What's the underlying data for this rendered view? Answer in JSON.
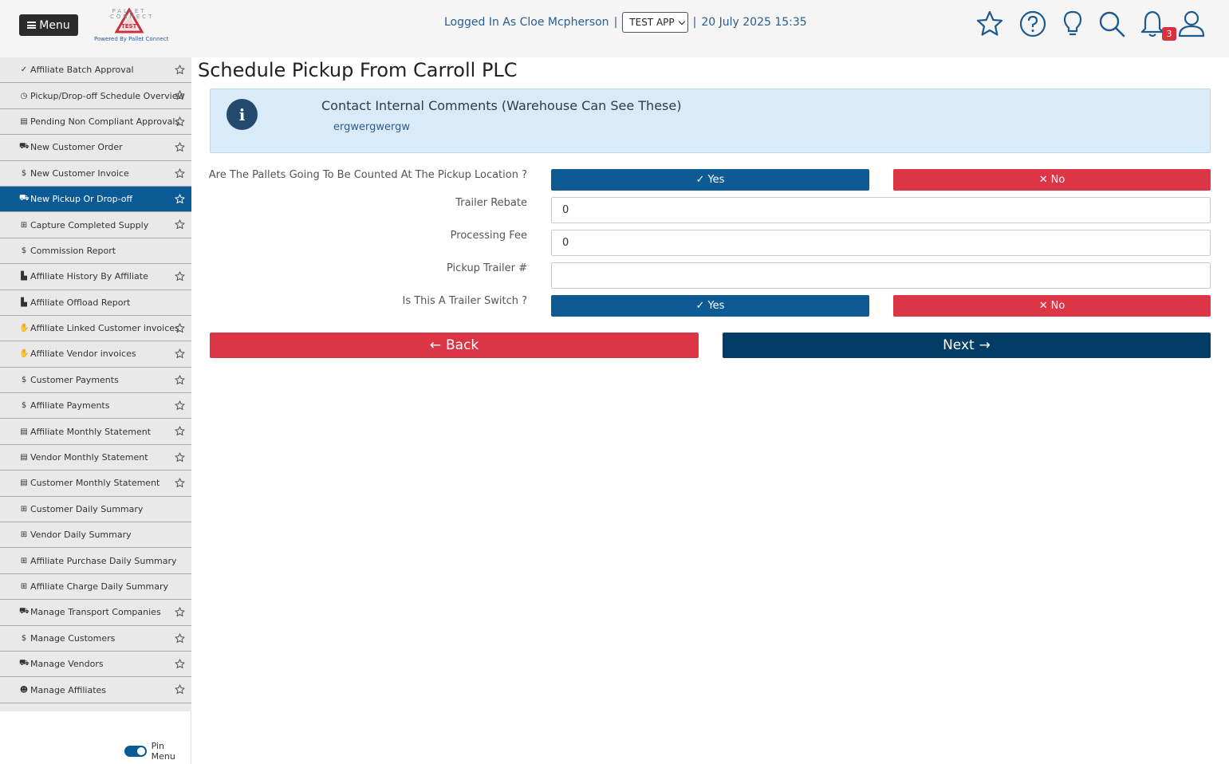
{
  "header": {
    "menu_label": "Menu",
    "logo_top": "PALLET CONNECT",
    "logo_badge": "TEST",
    "logo_sub": "Powered By Pallet Connect",
    "logged_in_text": "Logged In As Cloe Mcpherson",
    "separator": "|",
    "app_select_value": "TEST APP",
    "datetime": "20 July 2025 15:35",
    "notification_count": "3",
    "icons": [
      "star-icon",
      "help-icon",
      "lightbulb-icon",
      "search-icon",
      "bell-icon",
      "user-icon"
    ]
  },
  "sidebar": {
    "items": [
      {
        "icon": "check-icon",
        "glyph": "✓",
        "label": "Affiliate Batch Approval",
        "star": true
      },
      {
        "icon": "clock-icon",
        "glyph": "◷",
        "label": "Pickup/Drop-off Schedule Overview",
        "star": true
      },
      {
        "icon": "clipboard-icon",
        "glyph": "▤",
        "label": "Pending Non Compliant Approvals",
        "star": true
      },
      {
        "icon": "dolly-icon",
        "glyph": "⛟",
        "label": "New Customer Order",
        "star": true
      },
      {
        "icon": "dollar-icon",
        "glyph": "$",
        "label": "New Customer Invoice",
        "star": true
      },
      {
        "icon": "dolly-icon",
        "glyph": "⛟",
        "label": "New Pickup Or Drop-off",
        "star": true,
        "active": true
      },
      {
        "icon": "pallet-icon",
        "glyph": "⊞",
        "label": "Capture Completed Supply",
        "star": true
      },
      {
        "icon": "dollar-icon",
        "glyph": "$",
        "label": "Commission Report",
        "star": false
      },
      {
        "icon": "chart-icon",
        "glyph": "▙",
        "label": "Affiliate History By Affiliate",
        "star": true
      },
      {
        "icon": "chart-icon",
        "glyph": "▙",
        "label": "Affiliate Offload Report",
        "star": false
      },
      {
        "icon": "hand-icon",
        "glyph": "✋",
        "label": "Affiliate Linked Customer invoices",
        "star": true
      },
      {
        "icon": "hand-icon",
        "glyph": "✋",
        "label": "Affiliate Vendor invoices",
        "star": true
      },
      {
        "icon": "dollar-icon",
        "glyph": "$",
        "label": "Customer Payments",
        "star": true
      },
      {
        "icon": "dollar-icon",
        "glyph": "$",
        "label": "Affiliate Payments",
        "star": true
      },
      {
        "icon": "list-icon",
        "glyph": "▤",
        "label": "Affiliate Monthly Statement",
        "star": true
      },
      {
        "icon": "list-icon",
        "glyph": "▤",
        "label": "Vendor Monthly Statement",
        "star": true
      },
      {
        "icon": "list-icon",
        "glyph": "▤",
        "label": "Customer Monthly Statement",
        "star": true
      },
      {
        "icon": "table-icon",
        "glyph": "⊞",
        "label": "Customer Daily Summary",
        "star": false
      },
      {
        "icon": "table-icon",
        "glyph": "⊞",
        "label": "Vendor Daily Summary",
        "star": false
      },
      {
        "icon": "table-icon",
        "glyph": "⊞",
        "label": "Affiliate Purchase Daily Summary",
        "star": false
      },
      {
        "icon": "table-icon",
        "glyph": "⊞",
        "label": "Affiliate Charge Daily Summary",
        "star": false
      },
      {
        "icon": "truck-icon",
        "glyph": "⛟",
        "label": "Manage Transport Companies",
        "star": true
      },
      {
        "icon": "dollar-icon",
        "glyph": "$",
        "label": "Manage Customers",
        "star": true
      },
      {
        "icon": "truck-icon",
        "glyph": "⛟",
        "label": "Manage Vendors",
        "star": true
      },
      {
        "icon": "users-icon",
        "glyph": "☻",
        "label": "Manage Affiliates",
        "star": true
      }
    ],
    "pin_label": "Pin Menu"
  },
  "main": {
    "title": "Schedule Pickup From Carroll PLC",
    "info_title": "Contact Internal Comments (Warehouse Can See These)",
    "info_text": "ergwergwergw",
    "counted_label": "Are The Pallets Going To Be Counted At The Pickup Location ?",
    "yes_label": "Yes",
    "no_label": "No",
    "trailer_rebate_label": "Trailer Rebate",
    "trailer_rebate_value": "0",
    "processing_fee_label": "Processing Fee",
    "processing_fee_value": "0",
    "pickup_trailer_label": "Pickup Trailer #",
    "pickup_trailer_value": "",
    "trailer_switch_label": "Is This A Trailer Switch ?",
    "back_label": "Back",
    "next_label": "Next"
  },
  "colors": {
    "primary": "#0d5a95",
    "danger": "#dc3545",
    "dark_primary": "#033c66",
    "info_bg": "#d9eaf9",
    "badge": "#d9303e"
  }
}
